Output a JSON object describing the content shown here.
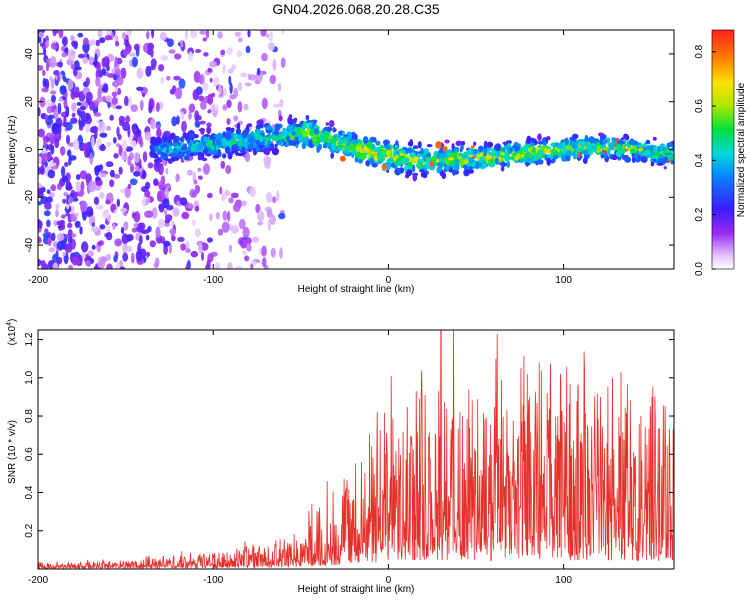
{
  "title": "GN04.2026.068.20.28.C35",
  "colors": {
    "snr_line": "#e8302a",
    "spec_low": "#c9a8f0",
    "spec_mid": "#7a1fd6",
    "spec_high": "#1040ff",
    "spec_peak": "#00e0d0"
  },
  "chart_data": [
    {
      "name": "spectrogram",
      "type": "heatmap",
      "title": "GN04.2026.068.20.28.C35",
      "xlabel": "Height of straight line (km)",
      "ylabel": "Frequency (Hz)",
      "xlim": [
        -200,
        163
      ],
      "ylim": [
        -50,
        50
      ],
      "xticks": [
        -200,
        -100,
        0,
        100
      ],
      "yticks": [
        -40,
        -20,
        0,
        20,
        40
      ],
      "colorbar": {
        "label": "Normalized spectral amplitude",
        "range": [
          0.0,
          0.88
        ],
        "ticks": [
          0.0,
          0.2,
          0.4,
          0.6,
          0.8
        ]
      },
      "ridge": [
        {
          "x": -130,
          "freq": 0,
          "width": 8,
          "amp": 0.35
        },
        {
          "x": -100,
          "freq": 2,
          "width": 8,
          "amp": 0.42
        },
        {
          "x": -70,
          "freq": 5,
          "width": 9,
          "amp": 0.45
        },
        {
          "x": -45,
          "freq": 7,
          "width": 10,
          "amp": 0.55
        },
        {
          "x": -30,
          "freq": 3,
          "width": 8,
          "amp": 0.6
        },
        {
          "x": -10,
          "freq": -1,
          "width": 9,
          "amp": 0.7
        },
        {
          "x": 20,
          "freq": -5,
          "width": 9,
          "amp": 0.55
        },
        {
          "x": 60,
          "freq": -3,
          "width": 7,
          "amp": 0.65
        },
        {
          "x": 100,
          "freq": 0,
          "width": 7,
          "amp": 0.6
        },
        {
          "x": 130,
          "freq": 1,
          "width": 7,
          "amp": 0.55
        },
        {
          "x": 163,
          "freq": -2,
          "width": 7,
          "amp": 0.5
        }
      ],
      "noise_region": [
        -200,
        -60
      ]
    },
    {
      "name": "snr",
      "type": "line",
      "xlabel": "Height of straight line (km)",
      "ylabel": "SNR (10 * v/v)",
      "y_multiplier": "(x10",
      "y_multiplier_exp": "4",
      "y_multiplier_close": ")",
      "xlim": [
        -200,
        163
      ],
      "ylim": [
        0,
        1.25
      ],
      "xticks": [
        -200,
        -100,
        0,
        100
      ],
      "yticks": [
        0.2,
        0.4,
        0.6,
        0.8,
        1.0,
        1.2
      ],
      "ytick_labels": [
        "0.2",
        "0.4",
        "0.6",
        "0.8",
        "1.0",
        "1.2"
      ],
      "envelope": [
        {
          "x": -200,
          "y": 0.03
        },
        {
          "x": -150,
          "y": 0.04
        },
        {
          "x": -100,
          "y": 0.08
        },
        {
          "x": -70,
          "y": 0.12
        },
        {
          "x": -50,
          "y": 0.18
        },
        {
          "x": -35,
          "y": 0.35
        },
        {
          "x": -20,
          "y": 0.5
        },
        {
          "x": 0,
          "y": 0.7
        },
        {
          "x": 25,
          "y": 0.95
        },
        {
          "x": 50,
          "y": 0.85
        },
        {
          "x": 80,
          "y": 0.85
        },
        {
          "x": 110,
          "y": 0.9
        },
        {
          "x": 140,
          "y": 0.85
        },
        {
          "x": 163,
          "y": 0.8
        }
      ],
      "peaks": [
        {
          "x": 30,
          "y": 1.25
        },
        {
          "x": 62,
          "y": 1.23
        },
        {
          "x": 86,
          "y": 1.08
        },
        {
          "x": 112,
          "y": 1.05
        },
        {
          "x": 128,
          "y": 1.0
        },
        {
          "x": 163,
          "y": 0.9
        }
      ]
    }
  ]
}
